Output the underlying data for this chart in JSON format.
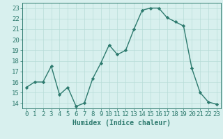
{
  "x": [
    0,
    1,
    2,
    3,
    4,
    5,
    6,
    7,
    8,
    9,
    10,
    11,
    12,
    13,
    14,
    15,
    16,
    17,
    18,
    19,
    20,
    21,
    22,
    23
  ],
  "y": [
    15.5,
    16.0,
    16.0,
    17.5,
    14.8,
    15.5,
    13.7,
    14.0,
    16.3,
    17.8,
    19.5,
    18.6,
    19.0,
    21.0,
    22.8,
    23.0,
    23.0,
    22.1,
    21.7,
    21.3,
    17.3,
    15.0,
    14.1,
    13.9
  ],
  "line_color": "#2d7a6e",
  "marker": "D",
  "markersize": 2.2,
  "linewidth": 1.0,
  "bg_color": "#d8f0ee",
  "grid_color": "#b8dcd8",
  "xlabel": "Humidex (Indice chaleur)",
  "xlabel_fontsize": 7,
  "tick_fontsize": 6.5,
  "ylim": [
    13.5,
    23.5
  ],
  "yticks": [
    14,
    15,
    16,
    17,
    18,
    19,
    20,
    21,
    22,
    23
  ],
  "xticks": [
    0,
    1,
    2,
    3,
    4,
    5,
    6,
    7,
    8,
    9,
    10,
    11,
    12,
    13,
    14,
    15,
    16,
    17,
    18,
    19,
    20,
    21,
    22,
    23
  ],
  "xlim": [
    -0.5,
    23.5
  ]
}
